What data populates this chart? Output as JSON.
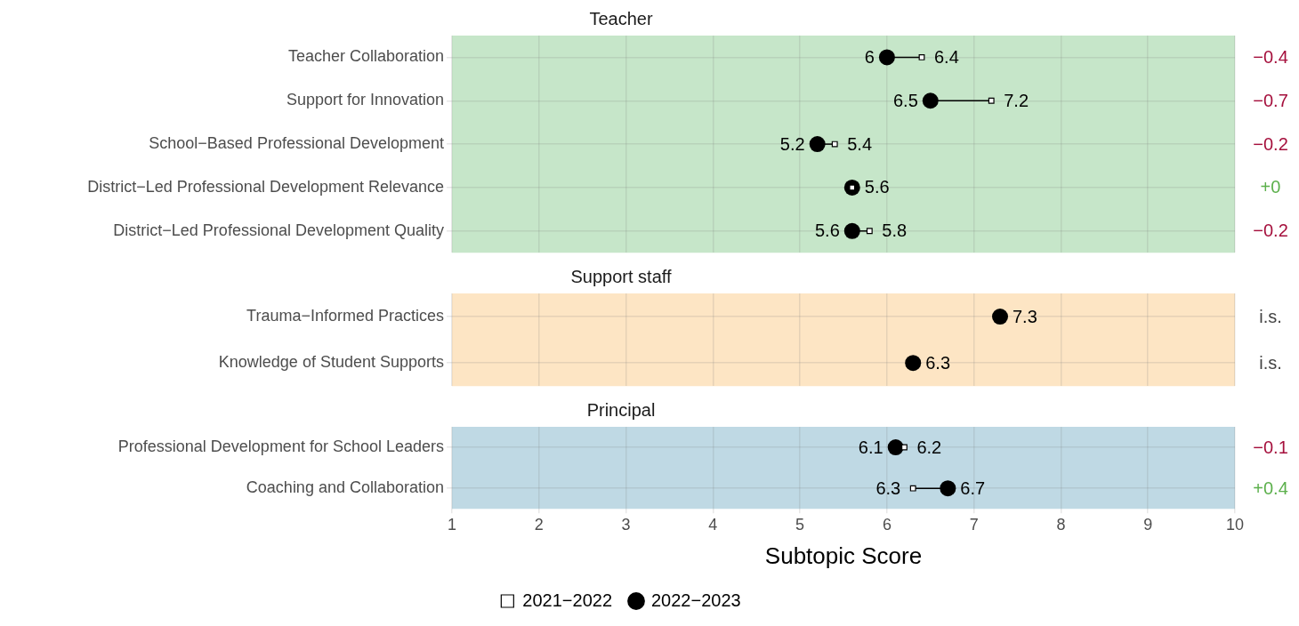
{
  "chart_data": [
    {
      "type": "scatter",
      "orientation": "horizontal",
      "title": "Teacher",
      "categories": [
        "Teacher Collaboration",
        "Support for Innovation",
        "School−Based Professional Development",
        "District−Led Professional Development Relevance",
        "District−Led Professional Development Quality"
      ],
      "series": [
        {
          "color": "#ffffff",
          "marker": "square",
          "values": [
            6.4,
            7.2,
            5.4,
            5.6,
            5.8
          ],
          "value_labels": [
            "6.4",
            "7.2",
            "5.4",
            null,
            "5.8"
          ]
        },
        {
          "color": "#000000",
          "marker": "circle",
          "values": [
            6.0,
            6.5,
            5.2,
            5.6,
            5.6
          ],
          "value_labels": [
            "6",
            "6.5",
            "5.2",
            "5.6",
            "5.6"
          ]
        }
      ],
      "xlim": [
        1,
        10
      ],
      "xticks": [
        1,
        2,
        3,
        4,
        5,
        6,
        7,
        8,
        9,
        10
      ],
      "tick_labels": "y",
      "grid": true,
      "bands": [
        {
          "axis": "x",
          "from": 1,
          "to": 10,
          "color": "#c6e6c9"
        }
      ],
      "annotations": [
        "−0.4",
        "−0.7",
        "−0.2",
        "+0",
        "−0.2"
      ]
    },
    {
      "type": "scatter",
      "orientation": "horizontal",
      "title": "Support staff",
      "categories": [
        "Trauma−Informed Practices",
        "Knowledge of Student Supports"
      ],
      "series": [
        {
          "color": "#ffffff",
          "marker": "square",
          "values": [
            null,
            null
          ]
        },
        {
          "color": "#000000",
          "marker": "circle",
          "values": [
            7.3,
            6.3
          ],
          "value_labels": [
            "7.3",
            "6.3"
          ]
        }
      ],
      "xlim": [
        1,
        10
      ],
      "xticks": [
        1,
        2,
        3,
        4,
        5,
        6,
        7,
        8,
        9,
        10
      ],
      "tick_labels": "y",
      "grid": true,
      "bands": [
        {
          "axis": "x",
          "from": 1,
          "to": 10,
          "color": "#fde5c4"
        }
      ],
      "annotations": [
        "i.s.",
        "i.s."
      ]
    },
    {
      "type": "scatter",
      "orientation": "horizontal",
      "title": "Principal",
      "xlabel": "Subtopic Score",
      "categories": [
        "Professional Development for School Leaders",
        "Coaching and Collaboration"
      ],
      "series": [
        {
          "name": "2021−2022",
          "color": "#ffffff",
          "marker": "square",
          "values": [
            6.2,
            6.3
          ],
          "value_labels": [
            "6.2",
            "6.3"
          ]
        },
        {
          "name": "2022−2023",
          "color": "#000000",
          "marker": "circle",
          "values": [
            6.1,
            6.7
          ],
          "value_labels": [
            "6.1",
            "6.7"
          ]
        }
      ],
      "xlim": [
        1,
        10
      ],
      "xticks": [
        1,
        2,
        3,
        4,
        5,
        6,
        7,
        8,
        9,
        10
      ],
      "grid": true,
      "legend": "bottom",
      "bands": [
        {
          "axis": "x",
          "from": 1,
          "to": 10,
          "color": "#bfd9e4"
        }
      ],
      "annotations": [
        "−0.1",
        "+0.4"
      ]
    }
  ]
}
